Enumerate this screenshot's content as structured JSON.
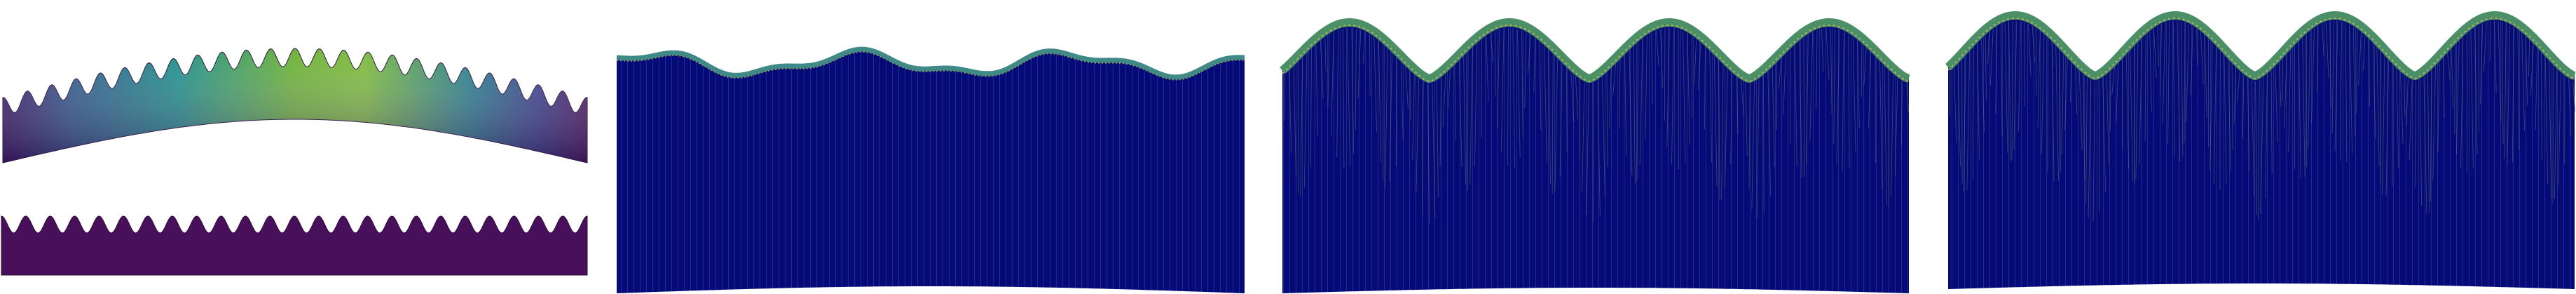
{
  "figure": {
    "panel_count": 5,
    "panels": [
      {
        "id": "deformed-strip-colormap",
        "waves": 24,
        "colormap": "viridis",
        "deformed": true
      },
      {
        "id": "reference-strip",
        "waves": 24,
        "color": "#4a0f55"
      },
      {
        "id": "mesh-low-amplitude",
        "waves": 3,
        "fill": "#060a78",
        "line": "#2a4a8f",
        "edge_band": "#3c8d8f"
      },
      {
        "id": "mesh-wrinkle-onset",
        "waves": 4,
        "fill": "#060a78",
        "line": "#2a4a8f",
        "edge_band": "#4a9a6a"
      },
      {
        "id": "mesh-wrinkle-developed",
        "waves": 4,
        "fill": "#060a78",
        "line": "#2a4a8f",
        "edge_band": "#4a9a6a"
      }
    ],
    "colors": {
      "viridis_low": "#440154",
      "viridis_mid": "#2a7f8e",
      "viridis_high": "#7fbc41",
      "mesh_blue": "#060a78",
      "edge_green": "#5c9c4a"
    }
  }
}
